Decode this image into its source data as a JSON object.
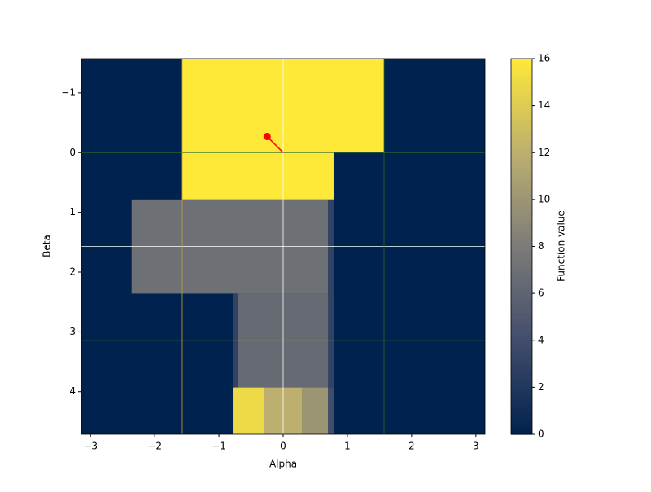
{
  "chart_data": {
    "type": "image",
    "xlabel": "Alpha",
    "ylabel": "Beta",
    "colorbar_label": "Function value",
    "xlim": [
      -3.14159,
      3.14159
    ],
    "ylim": [
      4.71239,
      -1.5708
    ],
    "xticks": [
      {
        "value": -3,
        "label": "−3"
      },
      {
        "value": -2,
        "label": "−2"
      },
      {
        "value": -1,
        "label": "−1"
      },
      0,
      1,
      2,
      3
    ],
    "yticks": [
      {
        "value": -1,
        "label": "−1"
      },
      0,
      1,
      2,
      3,
      4
    ],
    "clim": [
      0,
      16
    ],
    "cticks": [
      0,
      2,
      4,
      6,
      8,
      10,
      12,
      14,
      16
    ],
    "colormap": "cividis",
    "regions": [
      {
        "alpha": [
          -3.14159,
          3.14159
        ],
        "beta": [
          -1.5708,
          4.71239
        ],
        "value": 0
      },
      {
        "alpha": [
          -1.5708,
          1.5708
        ],
        "beta": [
          -1.5708,
          0
        ],
        "value": 16
      },
      {
        "alpha": [
          -1.5708,
          0.785
        ],
        "beta": [
          0,
          0.785
        ],
        "value": 16
      },
      {
        "alpha": [
          -2.36,
          0.7
        ],
        "beta": [
          0.785,
          2.36
        ],
        "value": 7
      },
      {
        "alpha": [
          0.7,
          0.785
        ],
        "beta": [
          0.785,
          3.93
        ],
        "value": 3
      },
      {
        "alpha": [
          -0.7,
          0.7
        ],
        "beta": [
          2.36,
          3.93
        ],
        "value": 6.5
      },
      {
        "alpha": [
          -0.785,
          -0.7
        ],
        "beta": [
          2.36,
          3.93
        ],
        "value": 3
      },
      {
        "alpha": [
          -0.785,
          -0.3
        ],
        "beta": [
          3.93,
          4.71239
        ],
        "value": 15
      },
      {
        "alpha": [
          -0.3,
          0.3
        ],
        "beta": [
          3.93,
          4.71239
        ],
        "value": 12
      },
      {
        "alpha": [
          0.3,
          0.7
        ],
        "beta": [
          3.93,
          4.71239
        ],
        "value": 10
      },
      {
        "alpha": [
          0.7,
          0.785
        ],
        "beta": [
          3.93,
          4.71239
        ],
        "value": 4
      }
    ],
    "guide_lines": [
      {
        "axis": "x",
        "value": 0,
        "color": "#ffffff"
      },
      {
        "axis": "y",
        "value": 1.5708,
        "color": "#ffffff"
      },
      {
        "axis": "y",
        "value": 0,
        "color": "#2e6b2e"
      },
      {
        "axis": "x",
        "value": 1.5708,
        "color": "#2e6b2e"
      },
      {
        "axis": "x",
        "value": -1.5708,
        "color": "#c8a040"
      },
      {
        "axis": "y",
        "value": 3.14159,
        "color": "#c8a040"
      }
    ],
    "marker": {
      "x": -0.25,
      "y": -0.27,
      "color": "#ff0000",
      "to": [
        0,
        0
      ]
    }
  }
}
